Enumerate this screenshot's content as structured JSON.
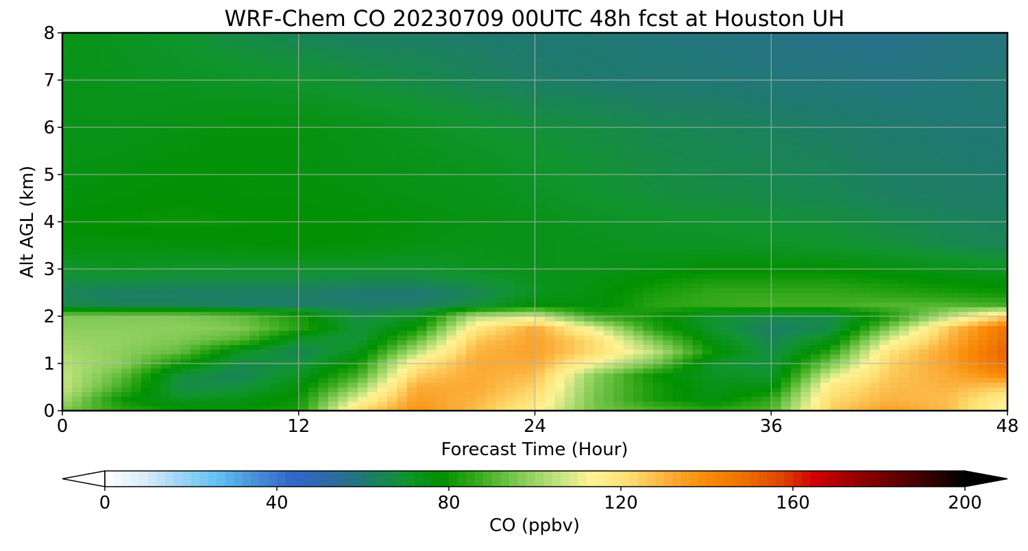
{
  "chart_data": {
    "type": "heatmap",
    "title": "WRF-Chem CO  20230709 00UTC 48h fcst at Houston UH",
    "xlabel": "Forecast Time (Hour)",
    "ylabel": "Alt AGL (km)",
    "xlim": [
      0,
      48
    ],
    "ylim": [
      0,
      8
    ],
    "xticks": [
      "0",
      "12",
      "24",
      "36",
      "48"
    ],
    "yticks": [
      "0",
      "1",
      "2",
      "3",
      "4",
      "5",
      "6",
      "7",
      "8"
    ],
    "grid": true,
    "colorbar": {
      "label": "CO  (ppbv)",
      "orientation": "horizontal",
      "range": [
        0,
        200
      ],
      "ticks": [
        "0",
        "40",
        "80",
        "120",
        "160",
        "200"
      ],
      "extend": "both",
      "colors": [
        "#ffffff",
        "#dceefa",
        "#9fd4f5",
        "#62c2f2",
        "#4a90d9",
        "#3366cc",
        "#2f6aa3",
        "#1f7a6e",
        "#11942f",
        "#009100",
        "#3aaa1e",
        "#7cc850",
        "#b9e07a",
        "#fff396",
        "#fddf73",
        "#fbb13d",
        "#f98d0a",
        "#f07400",
        "#e04a00",
        "#cf0000",
        "#9a0000",
        "#6a0000",
        "#370000",
        "#000000"
      ]
    },
    "x": [
      0,
      3,
      6,
      9,
      12,
      15,
      18,
      21,
      24,
      27,
      30,
      33,
      36,
      39,
      42,
      45,
      48
    ],
    "y": [
      0,
      0.25,
      0.5,
      0.75,
      1,
      1.25,
      1.5,
      1.75,
      2,
      2.25,
      2.5,
      3,
      3.5,
      4,
      4.5,
      5,
      6,
      7,
      8
    ],
    "values": [
      [
        95,
        85,
        80,
        80,
        82,
        122,
        138,
        128,
        115,
        95,
        90,
        85,
        90,
        125,
        135,
        128,
        110
      ],
      [
        102,
        80,
        72,
        74,
        80,
        110,
        135,
        130,
        120,
        95,
        82,
        75,
        85,
        122,
        130,
        128,
        115
      ],
      [
        106,
        88,
        66,
        68,
        76,
        98,
        132,
        132,
        124,
        96,
        82,
        74,
        76,
        118,
        128,
        130,
        125
      ],
      [
        106,
        92,
        68,
        64,
        72,
        88,
        125,
        132,
        128,
        98,
        80,
        72,
        70,
        108,
        126,
        132,
        140
      ],
      [
        104,
        98,
        80,
        66,
        68,
        80,
        118,
        132,
        132,
        112,
        95,
        70,
        68,
        95,
        124,
        134,
        150
      ],
      [
        102,
        98,
        92,
        72,
        64,
        74,
        104,
        130,
        134,
        122,
        105,
        80,
        66,
        84,
        120,
        134,
        152
      ],
      [
        100,
        99,
        96,
        90,
        70,
        68,
        92,
        126,
        134,
        122,
        96,
        75,
        64,
        74,
        110,
        130,
        150
      ],
      [
        98,
        98,
        98,
        96,
        84,
        68,
        80,
        118,
        132,
        110,
        84,
        70,
        62,
        66,
        96,
        126,
        148
      ],
      [
        96,
        96,
        96,
        92,
        82,
        66,
        72,
        104,
        108,
        86,
        80,
        70,
        66,
        66,
        82,
        104,
        125
      ],
      [
        66,
        64,
        64,
        62,
        62,
        62,
        62,
        68,
        78,
        76,
        84,
        86,
        88,
        88,
        90,
        90,
        88
      ],
      [
        64,
        62,
        62,
        62,
        62,
        60,
        60,
        64,
        72,
        76,
        82,
        86,
        86,
        86,
        84,
        82,
        80
      ],
      [
        70,
        72,
        70,
        70,
        70,
        70,
        70,
        72,
        74,
        74,
        76,
        78,
        78,
        78,
        76,
        74,
        72
      ],
      [
        76,
        76,
        76,
        77,
        78,
        77,
        75,
        74,
        74,
        73,
        72,
        72,
        71,
        70,
        68,
        66,
        64
      ],
      [
        78,
        79,
        80,
        79,
        78,
        78,
        76,
        75,
        74,
        72,
        71,
        70,
        69,
        68,
        66,
        64,
        63
      ],
      [
        76,
        77,
        78,
        77,
        77,
        76,
        75,
        74,
        72,
        70,
        68,
        67,
        66,
        65,
        63,
        62,
        62
      ],
      [
        75,
        76,
        77,
        77,
        76,
        75,
        74,
        73,
        71,
        69,
        67,
        66,
        65,
        64,
        62,
        62,
        61
      ],
      [
        74,
        74,
        75,
        76,
        76,
        74,
        72,
        70,
        68,
        67,
        65,
        64,
        63,
        62,
        61,
        60,
        60
      ],
      [
        74,
        73,
        72,
        71,
        70,
        68,
        66,
        64,
        62,
        61,
        60,
        60,
        59,
        59,
        58,
        59,
        60
      ],
      [
        74,
        72,
        70,
        66,
        64,
        62,
        62,
        61,
        60,
        60,
        59,
        58,
        57,
        56,
        56,
        57,
        58
      ]
    ]
  }
}
